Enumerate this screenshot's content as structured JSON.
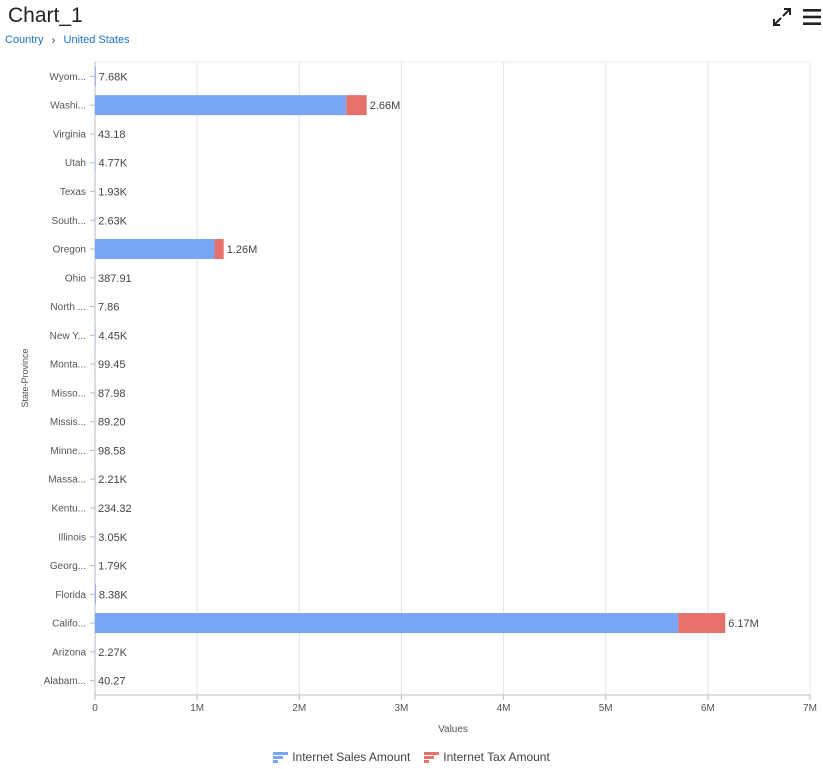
{
  "header": {
    "title": "Chart_1",
    "breadcrumb": [
      "Country",
      "United States"
    ]
  },
  "icons": {
    "expand": "expand-arrows-icon",
    "menu": "hamburger-menu-icon"
  },
  "colors": {
    "sales": "#78a6f5",
    "tax": "#e6706a",
    "link": "#1a73c9"
  },
  "chart_data": {
    "type": "bar",
    "orientation": "horizontal",
    "stacked": true,
    "categories": [
      "Wyom...",
      "Washi...",
      "Virginia",
      "Utah",
      "Texas",
      "South...",
      "Oregon",
      "Ohio",
      "North ...",
      "New Y...",
      "Monta...",
      "Misso...",
      "Missis...",
      "Minne...",
      "Massa...",
      "Kentu...",
      "Illinois",
      "Georg...",
      "Florida",
      "Califo...",
      "Arizona",
      "Alabam..."
    ],
    "series": [
      {
        "name": "Internet Sales Amount",
        "color": "#78a6f5",
        "values": [
          7100,
          2460000,
          40,
          4420,
          1790,
          2440,
          1170000,
          359,
          7.3,
          4120,
          92,
          81.5,
          82.6,
          91.3,
          2050,
          217,
          2820,
          1660,
          7760,
          5710000,
          2100,
          37.3
        ]
      },
      {
        "name": "Internet Tax Amount",
        "color": "#e6706a",
        "values": [
          580,
          200000,
          3.18,
          350,
          140,
          190,
          90000,
          28.9,
          0.56,
          330,
          7.45,
          6.48,
          6.6,
          7.28,
          160,
          17.3,
          230,
          130,
          620,
          460000,
          170,
          2.97
        ]
      }
    ],
    "data_labels": [
      "7.68K",
      "2.66M",
      "43.18",
      "4.77K",
      "1.93K",
      "2.63K",
      "1.26M",
      "387.91",
      "7.86",
      "4.45K",
      "99.45",
      "87.98",
      "89.20",
      "98.58",
      "2.21K",
      "234.32",
      "3.05K",
      "1.79K",
      "8.38K",
      "6.17M",
      "2.27K",
      "40.27"
    ],
    "x_ticks": [
      "0",
      "1M",
      "2M",
      "3M",
      "4M",
      "5M",
      "6M",
      "7M"
    ],
    "xlim": [
      0,
      7000000
    ],
    "xlabel": "Values",
    "ylabel": "State-Province",
    "grid": true,
    "legend_position": "bottom"
  }
}
